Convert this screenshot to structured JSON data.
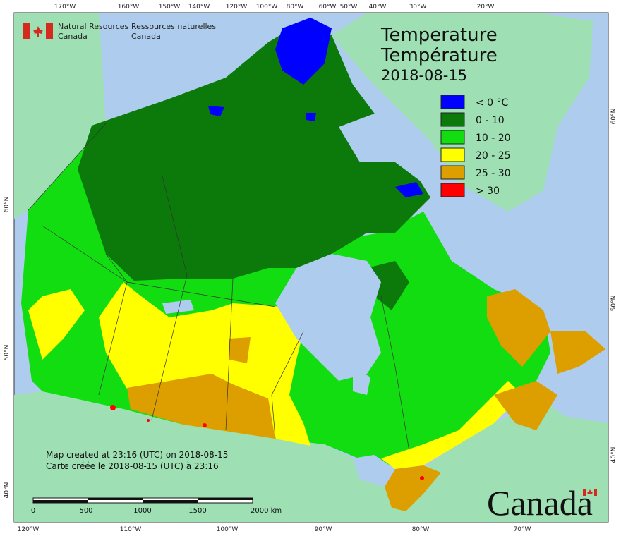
{
  "header": {
    "agency_en": [
      "Natural Resources",
      "Canada"
    ],
    "agency_fr": [
      "Ressources naturelles",
      "Canada"
    ]
  },
  "title": {
    "en": "Temperature",
    "fr": "Température",
    "date": "2018-08-15"
  },
  "legend": [
    {
      "label": "< 0 °C",
      "color": "#0000ff"
    },
    {
      "label": "0 - 10",
      "color": "#0b7a0b"
    },
    {
      "label": "10 - 20",
      "color": "#11dd11"
    },
    {
      "label": "20 - 25",
      "color": "#ffff00"
    },
    {
      "label": "25 - 30",
      "color": "#dd9f00"
    },
    {
      "label": "> 30",
      "color": "#ff0000"
    }
  ],
  "credits": [
    "Map created at 23:16 (UTC) on 2018-08-15",
    "Carte créée le 2018-08-15 (UTC) à 23:16"
  ],
  "scale_bar": [
    "0",
    "500",
    "1000",
    "1500",
    "2000  km"
  ],
  "graticule": {
    "top": [
      "170°W",
      "160°W",
      "150°W",
      "140°W",
      "120°W",
      "100°W",
      "80°W",
      "60°W",
      "50°W",
      "40°W",
      "30°W",
      "20°W"
    ],
    "bottom": [
      "120°W",
      "110°W",
      "100°W",
      "90°W",
      "80°W",
      "70°W"
    ],
    "left": [
      "60°N",
      "50°N",
      "40°N"
    ],
    "right": [
      "60°N",
      "50°N",
      "40°N"
    ]
  },
  "wordmark": "Canada"
}
